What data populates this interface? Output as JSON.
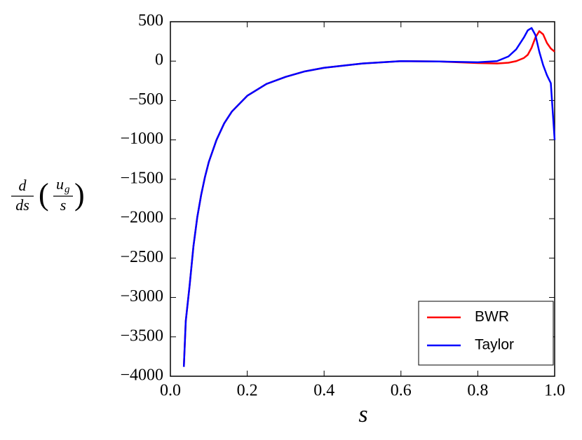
{
  "chart_data": {
    "type": "line",
    "xlabel": "s",
    "ylabel": {
      "outer": {
        "num": "d",
        "den": "ds"
      },
      "inner": {
        "num": "u",
        "sub": "g",
        "den": "s"
      }
    },
    "x": [
      0.035,
      0.04,
      0.05,
      0.06,
      0.07,
      0.08,
      0.09,
      0.1,
      0.12,
      0.14,
      0.16,
      0.2,
      0.25,
      0.3,
      0.35,
      0.4,
      0.5,
      0.6,
      0.7,
      0.8,
      0.85,
      0.88,
      0.9,
      0.92,
      0.93,
      0.94,
      0.95,
      0.96,
      0.97,
      0.98,
      0.99,
      1.0
    ],
    "series": [
      {
        "name": "BWR",
        "color": "#ff0000",
        "values": [
          -3880,
          -3300,
          -2850,
          -2350,
          -1980,
          -1700,
          -1470,
          -1280,
          -1000,
          -790,
          -640,
          -440,
          -290,
          -200,
          -130,
          -85,
          -30,
          0,
          -5,
          -25,
          -30,
          -20,
          0,
          40,
          80,
          170,
          300,
          380,
          340,
          230,
          160,
          120
        ]
      },
      {
        "name": "Taylor",
        "color": "#0000ff",
        "values": [
          -3880,
          -3300,
          -2850,
          -2350,
          -1980,
          -1700,
          -1470,
          -1280,
          -1000,
          -790,
          -640,
          -440,
          -290,
          -200,
          -130,
          -85,
          -30,
          0,
          -5,
          -15,
          0,
          60,
          150,
          300,
          390,
          420,
          330,
          120,
          -50,
          -180,
          -280,
          -1000
        ]
      }
    ],
    "xlim": [
      0,
      1
    ],
    "ylim": [
      -4000,
      500
    ],
    "xticks": [
      {
        "value": 0,
        "label": "0.0"
      },
      0.2,
      0.4,
      0.6,
      0.8,
      {
        "value": 1,
        "label": "1.0"
      }
    ],
    "yticks": [
      500,
      0,
      {
        "value": -500,
        "label": "−500"
      },
      {
        "value": -1000,
        "label": "−1000"
      },
      {
        "value": -1500,
        "label": "−1500"
      },
      {
        "value": -2000,
        "label": "−2000"
      },
      {
        "value": -2500,
        "label": "−2500"
      },
      {
        "value": -3000,
        "label": "−3000"
      },
      {
        "value": -3500,
        "label": "−3500"
      },
      {
        "value": -4000,
        "label": "−4000"
      }
    ],
    "legend": "lower right"
  }
}
